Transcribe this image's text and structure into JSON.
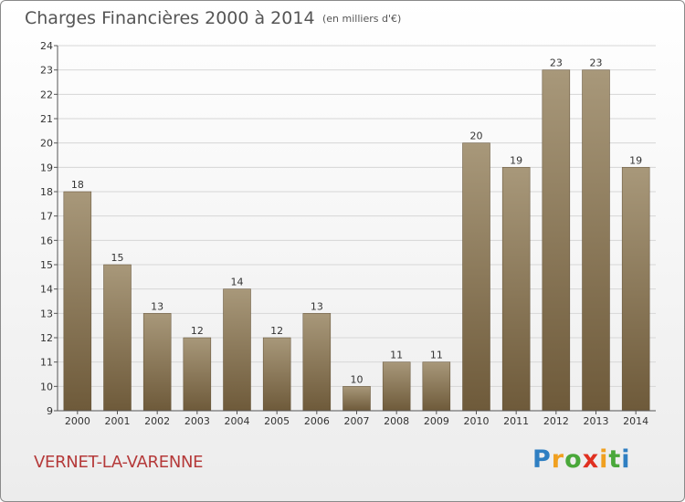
{
  "title": "Charges Financières 2000 à 2014",
  "subtitle": "(en milliers d'€)",
  "place": "VERNET-LA-VARENNE",
  "logo": {
    "letters": [
      "P",
      "r",
      "o",
      "x",
      "i",
      "t",
      "i"
    ],
    "colors": [
      "#2f7fc2",
      "#f0a020",
      "#4aa83a",
      "#e03020",
      "#f0a020",
      "#4aa83a",
      "#2f7fc2"
    ]
  },
  "colors": {
    "bar_top": "#a8987a",
    "bar_bottom": "#6e5a3a",
    "grid": "#d6d6d6",
    "axis": "#555555"
  },
  "chart_data": {
    "type": "bar",
    "categories": [
      "2000",
      "2001",
      "2002",
      "2003",
      "2004",
      "2005",
      "2006",
      "2007",
      "2008",
      "2009",
      "2010",
      "2011",
      "2012",
      "2013",
      "2014"
    ],
    "values": [
      18,
      15,
      13,
      12,
      14,
      12,
      13,
      10,
      11,
      11,
      20,
      19,
      23,
      23,
      19
    ],
    "ylim": [
      9,
      24
    ],
    "yticks": [
      9,
      10,
      11,
      12,
      13,
      14,
      15,
      16,
      17,
      18,
      19,
      20,
      21,
      22,
      23,
      24
    ],
    "grid": true
  }
}
